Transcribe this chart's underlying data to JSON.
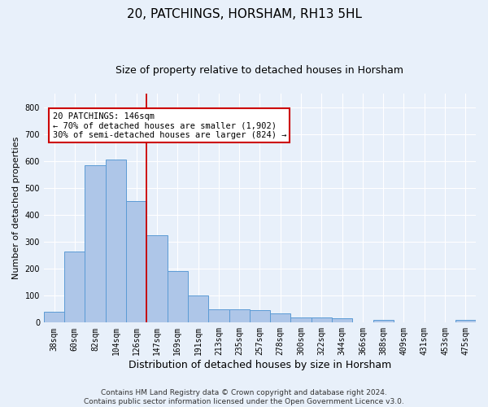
{
  "title": "20, PATCHINGS, HORSHAM, RH13 5HL",
  "subtitle": "Size of property relative to detached houses in Horsham",
  "xlabel": "Distribution of detached houses by size in Horsham",
  "ylabel": "Number of detached properties",
  "categories": [
    "38sqm",
    "60sqm",
    "82sqm",
    "104sqm",
    "126sqm",
    "147sqm",
    "169sqm",
    "191sqm",
    "213sqm",
    "235sqm",
    "257sqm",
    "278sqm",
    "300sqm",
    "322sqm",
    "344sqm",
    "366sqm",
    "388sqm",
    "409sqm",
    "431sqm",
    "453sqm",
    "475sqm"
  ],
  "values": [
    40,
    265,
    585,
    605,
    450,
    325,
    190,
    100,
    50,
    50,
    45,
    35,
    20,
    20,
    15,
    0,
    10,
    0,
    0,
    0,
    10
  ],
  "bar_color": "#aec6e8",
  "bar_edge_color": "#5b9bd5",
  "vline_color": "#cc0000",
  "annotation_text": "20 PATCHINGS: 146sqm\n← 70% of detached houses are smaller (1,902)\n30% of semi-detached houses are larger (824) →",
  "annotation_box_color": "#ffffff",
  "annotation_box_edge_color": "#cc0000",
  "ylim": [
    0,
    850
  ],
  "yticks": [
    0,
    100,
    200,
    300,
    400,
    500,
    600,
    700,
    800
  ],
  "footer_line1": "Contains HM Land Registry data © Crown copyright and database right 2024.",
  "footer_line2": "Contains public sector information licensed under the Open Government Licence v3.0.",
  "bg_color": "#e8f0fa",
  "plot_bg_color": "#e8f0fa",
  "grid_color": "#ffffff",
  "title_fontsize": 11,
  "subtitle_fontsize": 9,
  "ylabel_fontsize": 8,
  "xlabel_fontsize": 9,
  "tick_fontsize": 7,
  "footer_fontsize": 6.5,
  "annotation_fontsize": 7.5
}
